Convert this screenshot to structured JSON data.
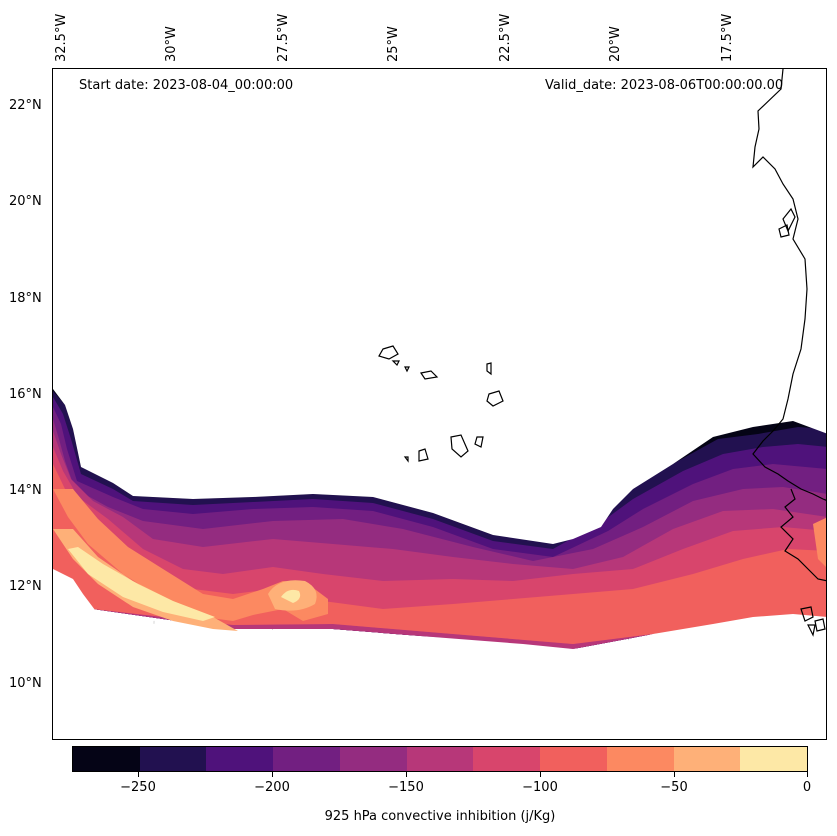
{
  "map": {
    "start_date": "Start date: 2023-08-04_00:00:00",
    "valid_date": "Valid_date: 2023-08-06T00:00:00.00",
    "lon_labels": [
      "32.5°W",
      "30°W",
      "27.5°W",
      "25°W",
      "22.5°W",
      "20°W",
      "17.5°W"
    ],
    "lat_labels": [
      "22°N",
      "20°N",
      "18°N",
      "16°N",
      "14°N",
      "12°N",
      "10°N"
    ]
  },
  "colorbar": {
    "title": "925 hPa convective inhibition (j/Kg)",
    "ticks": [
      "−250",
      "−200",
      "−150",
      "−100",
      "−50",
      "0"
    ],
    "colors": [
      "#050416",
      "#221150",
      "#4f127b",
      "#721f81",
      "#942c80",
      "#b73779",
      "#d8456c",
      "#f1605d",
      "#fc8961",
      "#feb078",
      "#fde8a6"
    ]
  }
}
